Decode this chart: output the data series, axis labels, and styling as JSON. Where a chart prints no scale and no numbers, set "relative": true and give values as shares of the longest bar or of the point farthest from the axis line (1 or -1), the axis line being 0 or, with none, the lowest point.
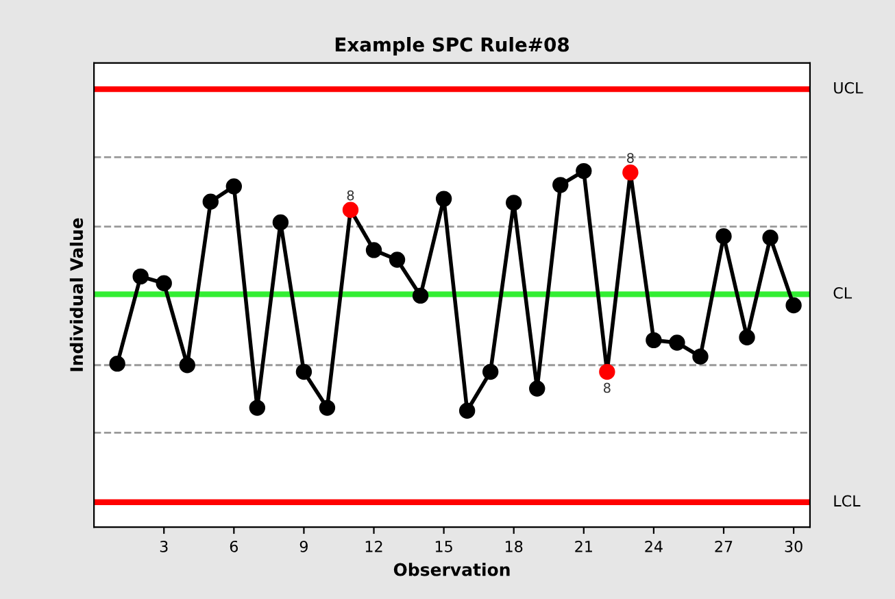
{
  "chart_data": {
    "type": "line",
    "title": "Example SPC Rule#08",
    "xlabel": "Observation",
    "ylabel": "Individual Value",
    "relative": true,
    "x": [
      1,
      2,
      3,
      4,
      5,
      6,
      7,
      8,
      9,
      10,
      11,
      12,
      13,
      14,
      15,
      16,
      17,
      18,
      19,
      20,
      21,
      22,
      23,
      24,
      25,
      26,
      27,
      28,
      29,
      30
    ],
    "xlim": [
      0,
      30.7
    ],
    "xticks": [
      3,
      6,
      9,
      12,
      15,
      18,
      21,
      24,
      27,
      30
    ],
    "series": [
      {
        "color": "#000000",
        "marker": "circle",
        "values": [
          0.459,
          0.704,
          0.685,
          0.455,
          0.914,
          0.957,
          0.335,
          0.856,
          0.436,
          0.335,
          0.891,
          0.778,
          0.751,
          0.65,
          0.922,
          0.327,
          0.436,
          0.911,
          0.389,
          0.961,
          1.0,
          0.436,
          0.996,
          0.525,
          0.518,
          0.479,
          0.817,
          0.533,
          0.813,
          0.623
        ],
        "colors": [
          "#000000",
          "#000000",
          "#000000",
          "#000000",
          "#000000",
          "#000000",
          "#000000",
          "#000000",
          "#000000",
          "#000000",
          "#ff0000",
          "#000000",
          "#000000",
          "#000000",
          "#000000",
          "#000000",
          "#000000",
          "#000000",
          "#000000",
          "#000000",
          "#000000",
          "#ff0000",
          "#ff0000",
          "#000000",
          "#000000",
          "#000000",
          "#000000",
          "#000000",
          "#000000",
          "#000000"
        ]
      }
    ],
    "ref_lines": [
      {
        "axis": "y",
        "value": 1.23,
        "label": "UCL",
        "color": "#ff0000",
        "line_style": "solid"
      },
      {
        "axis": "y",
        "value": 0.654,
        "label": "CL",
        "color": "#33ee33",
        "line_style": "solid"
      },
      {
        "axis": "y",
        "value": 0.07,
        "label": "LCL",
        "color": "#ff0000",
        "line_style": "solid"
      },
      {
        "axis": "y",
        "value": 1.039,
        "color": "#999999",
        "line_style": "dashed"
      },
      {
        "axis": "y",
        "value": 0.844,
        "color": "#999999",
        "line_style": "dashed"
      },
      {
        "axis": "y",
        "value": 0.455,
        "color": "#999999",
        "line_style": "dashed"
      },
      {
        "axis": "y",
        "value": 0.265,
        "color": "#999999",
        "line_style": "dashed"
      }
    ],
    "annotations": [
      {
        "text": "8",
        "x": 11,
        "y": 0.891
      },
      {
        "text": "8",
        "x": 22,
        "y": 0.436
      },
      {
        "text": "8",
        "x": 23,
        "y": 0.996
      }
    ]
  }
}
